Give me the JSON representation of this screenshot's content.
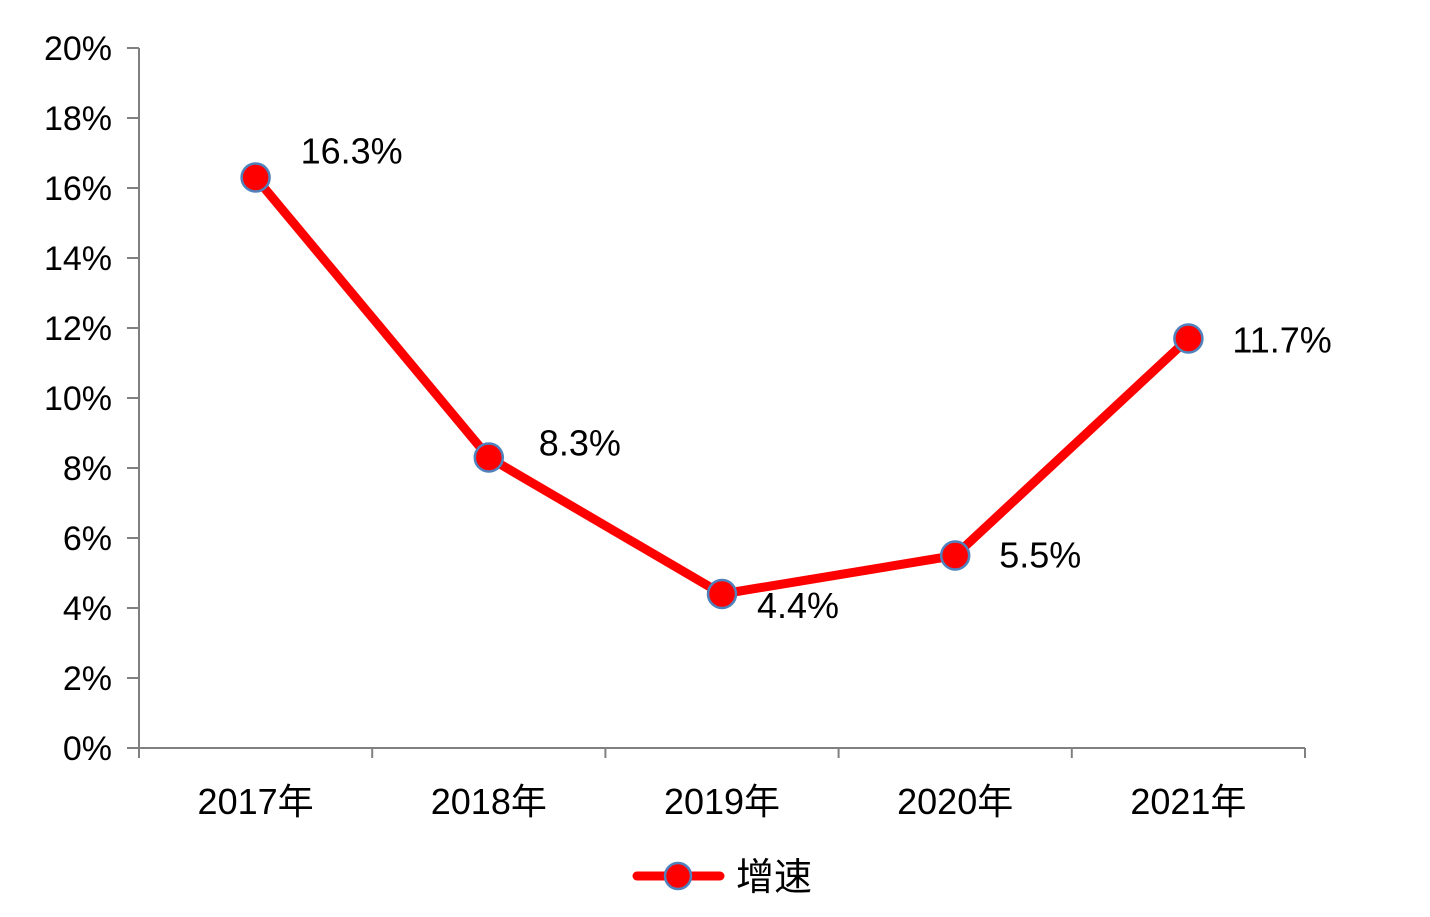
{
  "chart_data": {
    "type": "line",
    "categories": [
      "2017年",
      "2018年",
      "2019年",
      "2020年",
      "2021年"
    ],
    "series": [
      {
        "name": "增速",
        "values": [
          16.3,
          8.3,
          4.4,
          5.5,
          11.7
        ],
        "data_labels": [
          "16.3%",
          "8.3%",
          "4.4%",
          "5.5%",
          "11.7%"
        ],
        "color": "#ff0000",
        "marker_edge_color": "#4f81bd"
      }
    ],
    "y_ticks": [
      "0%",
      "2%",
      "4%",
      "6%",
      "8%",
      "10%",
      "12%",
      "14%",
      "16%",
      "18%",
      "20%"
    ],
    "ylim": [
      0,
      20
    ],
    "grid": false,
    "legend_position": "bottom",
    "axis_color": "#808080"
  }
}
